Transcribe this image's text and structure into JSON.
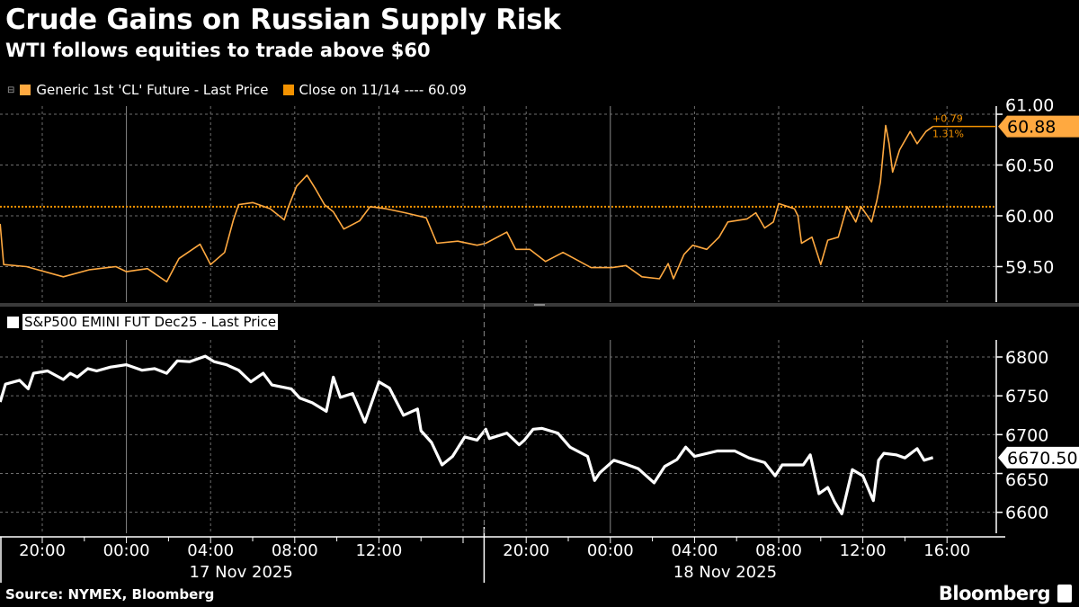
{
  "header": {
    "title": "Crude Gains on Russian Supply Risk",
    "subtitle": "WTI follows equities to trade above $60"
  },
  "footer": {
    "source": "Source: NYMEX, Bloomberg",
    "logo": "Bloomberg"
  },
  "colors": {
    "wti": "#ffa940",
    "close": "#f39200",
    "spx": "#ffffff",
    "grid": "#6e6e6e",
    "background": "#000000"
  },
  "chart_data": [
    {
      "type": "line",
      "legend": [
        {
          "label": "Generic 1st 'CL' Future - Last Price",
          "color": "#ffa940"
        },
        {
          "label": "Close on 11/14 ---- 60.09",
          "color": "#f39200"
        }
      ],
      "close_reference": 60.09,
      "last_value": "60.88",
      "change": "+0.79",
      "change_pct": "1.31%",
      "ylim": [
        59.15,
        61.08
      ],
      "yticks": [
        "61.00",
        "60.50",
        "60.00",
        "59.50"
      ],
      "ytick_values": [
        61.0,
        60.5,
        60.0,
        59.5
      ],
      "grid": true,
      "series": [
        {
          "x": [
            "2025-11-16T18:00",
            "2025-11-16T18:10",
            "2025-11-16T19:15",
            "2025-11-16T21:00",
            "2025-11-16T22:15",
            "2025-11-16T23:30",
            "2025-11-17T00:00",
            "2025-11-17T01:00",
            "2025-11-17T01:55",
            "2025-11-17T02:30",
            "2025-11-17T03:30",
            "2025-11-17T04:00",
            "2025-11-17T04:40",
            "2025-11-17T05:05",
            "2025-11-17T05:20",
            "2025-11-17T06:00",
            "2025-11-17T06:50",
            "2025-11-17T07:30",
            "2025-11-17T07:40",
            "2025-11-17T08:05",
            "2025-11-17T08:35",
            "2025-11-17T09:00",
            "2025-11-17T09:25",
            "2025-11-17T09:50",
            "2025-11-17T10:20",
            "2025-11-17T11:05",
            "2025-11-17T11:35",
            "2025-11-17T12:20",
            "2025-11-17T13:15",
            "2025-11-17T14:15",
            "2025-11-17T14:45",
            "2025-11-17T15:45",
            "2025-11-17T16:40",
            "2025-11-17T18:05",
            "2025-11-17T19:05",
            "2025-11-17T19:30",
            "2025-11-17T20:10",
            "2025-11-17T20:55",
            "2025-11-17T21:45",
            "2025-11-17T23:05",
            "2025-11-18T00:05",
            "2025-11-18T00:45",
            "2025-11-18T01:30",
            "2025-11-18T02:20",
            "2025-11-18T02:45",
            "2025-11-18T03:00",
            "2025-11-18T03:30",
            "2025-11-18T03:55",
            "2025-11-18T04:35",
            "2025-11-18T05:10",
            "2025-11-18T05:35",
            "2025-11-18T06:30",
            "2025-11-18T06:55",
            "2025-11-18T07:20",
            "2025-11-18T07:45",
            "2025-11-18T08:00",
            "2025-11-18T08:45",
            "2025-11-18T08:55",
            "2025-11-18T09:05",
            "2025-11-18T09:35",
            "2025-11-18T10:00",
            "2025-11-18T10:20",
            "2025-11-18T10:50",
            "2025-11-18T11:15",
            "2025-11-18T11:40",
            "2025-11-18T11:55",
            "2025-11-18T12:25",
            "2025-11-18T12:40",
            "2025-11-18T12:50",
            "2025-11-18T13:05",
            "2025-11-18T13:15",
            "2025-11-18T13:25",
            "2025-11-18T13:45",
            "2025-11-18T14:15",
            "2025-11-18T14:35",
            "2025-11-18T15:00",
            "2025-11-18T15:20"
          ],
          "y": [
            59.92,
            59.52,
            59.5,
            59.4,
            59.47,
            59.5,
            59.45,
            59.48,
            59.35,
            59.58,
            59.72,
            59.52,
            59.64,
            59.96,
            60.11,
            60.13,
            60.07,
            59.96,
            60.07,
            60.29,
            60.4,
            60.26,
            60.11,
            60.04,
            59.87,
            59.95,
            60.09,
            60.07,
            60.03,
            59.98,
            59.73,
            59.75,
            59.71,
            59.73,
            59.84,
            59.67,
            59.67,
            59.55,
            59.64,
            59.49,
            59.49,
            59.51,
            59.4,
            59.38,
            59.53,
            59.38,
            59.62,
            59.71,
            59.67,
            59.79,
            59.94,
            59.97,
            60.03,
            59.88,
            59.94,
            60.12,
            60.07,
            60.0,
            59.73,
            59.79,
            59.52,
            59.76,
            59.79,
            60.09,
            59.94,
            60.09,
            59.94,
            60.15,
            60.33,
            60.89,
            60.71,
            60.43,
            60.65,
            60.83,
            60.71,
            60.83,
            60.88
          ]
        }
      ]
    },
    {
      "type": "line",
      "legend": [
        {
          "label": "S&P500 EMINI FUT Dec25 - Last Price",
          "color": "#ffffff"
        }
      ],
      "last_value": "6670.50",
      "ylim": [
        6573,
        6822
      ],
      "yticks": [
        "6800",
        "6750",
        "6700",
        "6650",
        "6600"
      ],
      "ytick_values": [
        6800,
        6750,
        6700,
        6650,
        6600
      ],
      "grid": true,
      "series": [
        {
          "x": [
            "2025-11-16T18:00",
            "2025-11-16T18:15",
            "2025-11-16T18:55",
            "2025-11-16T19:20",
            "2025-11-16T19:35",
            "2025-11-16T20:15",
            "2025-11-16T21:00",
            "2025-11-16T21:20",
            "2025-11-16T21:40",
            "2025-11-16T22:10",
            "2025-11-16T22:35",
            "2025-11-16T23:15",
            "2025-11-17T00:00",
            "2025-11-17T00:45",
            "2025-11-17T01:20",
            "2025-11-17T01:55",
            "2025-11-17T02:25",
            "2025-11-17T03:00",
            "2025-11-17T03:45",
            "2025-11-17T04:10",
            "2025-11-17T04:45",
            "2025-11-17T05:20",
            "2025-11-17T05:55",
            "2025-11-17T06:30",
            "2025-11-17T06:55",
            "2025-11-17T07:50",
            "2025-11-17T08:15",
            "2025-11-17T08:50",
            "2025-11-17T09:30",
            "2025-11-17T09:50",
            "2025-11-17T10:10",
            "2025-11-17T10:45",
            "2025-11-17T11:20",
            "2025-11-17T12:00",
            "2025-11-17T12:30",
            "2025-11-17T13:10",
            "2025-11-17T13:50",
            "2025-11-17T14:00",
            "2025-11-17T14:30",
            "2025-11-17T15:00",
            "2025-11-17T15:30",
            "2025-11-17T16:05",
            "2025-11-17T16:40",
            "2025-11-17T18:05",
            "2025-11-17T18:15",
            "2025-11-17T19:05",
            "2025-11-17T19:40",
            "2025-11-17T19:55",
            "2025-11-17T20:20",
            "2025-11-17T20:45",
            "2025-11-17T21:30",
            "2025-11-17T22:05",
            "2025-11-17T22:55",
            "2025-11-17T23:15",
            "2025-11-17T23:30",
            "2025-11-18T00:10",
            "2025-11-18T00:45",
            "2025-11-18T01:20",
            "2025-11-18T02:05",
            "2025-11-18T02:35",
            "2025-11-18T03:10",
            "2025-11-18T03:35",
            "2025-11-18T04:00",
            "2025-11-18T05:05",
            "2025-11-18T05:55",
            "2025-11-18T06:35",
            "2025-11-18T07:20",
            "2025-11-18T07:50",
            "2025-11-18T08:10",
            "2025-11-18T09:10",
            "2025-11-18T09:30",
            "2025-11-18T09:55",
            "2025-11-18T10:20",
            "2025-11-18T10:40",
            "2025-11-18T11:00",
            "2025-11-18T11:30",
            "2025-11-18T12:00",
            "2025-11-18T12:30",
            "2025-11-18T12:45",
            "2025-11-18T13:00",
            "2025-11-18T13:35",
            "2025-11-18T14:00",
            "2025-11-18T14:35",
            "2025-11-18T14:55",
            "2025-11-18T15:20"
          ],
          "y": [
            6742,
            6765,
            6770,
            6759,
            6779,
            6782,
            6771,
            6779,
            6774,
            6785,
            6782,
            6787,
            6790,
            6783,
            6785,
            6779,
            6795,
            6794,
            6801,
            6794,
            6790,
            6783,
            6768,
            6779,
            6764,
            6759,
            6747,
            6741,
            6730,
            6774,
            6748,
            6753,
            6716,
            6768,
            6760,
            6725,
            6733,
            6705,
            6690,
            6661,
            6672,
            6697,
            6693,
            6707,
            6695,
            6702,
            6687,
            6693,
            6707,
            6708,
            6702,
            6684,
            6672,
            6641,
            6651,
            6667,
            6662,
            6656,
            6638,
            6659,
            6668,
            6684,
            6672,
            6679,
            6679,
            6670,
            6664,
            6647,
            6661,
            6661,
            6674,
            6624,
            6632,
            6613,
            6598,
            6655,
            6647,
            6615,
            6667,
            6676,
            6674,
            6670,
            6682,
            6667,
            6670.5
          ]
        }
      ]
    }
  ],
  "xaxis": {
    "ticks": [
      "2025-11-16T20:00",
      "2025-11-17T00:00",
      "2025-11-17T04:00",
      "2025-11-17T08:00",
      "2025-11-17T12:00",
      "2025-11-17T16:00",
      "2025-11-17T20:00",
      "2025-11-18T00:00",
      "2025-11-18T04:00",
      "2025-11-18T08:00",
      "2025-11-18T12:00",
      "2025-11-18T16:00"
    ],
    "tick_labels": [
      "20:00",
      "00:00",
      "04:00",
      "08:00",
      "12:00",
      "",
      "20:00",
      "00:00",
      "04:00",
      "08:00",
      "12:00",
      "16:00"
    ],
    "date_labels": [
      "17 Nov 2025",
      "18 Nov 2025"
    ]
  }
}
